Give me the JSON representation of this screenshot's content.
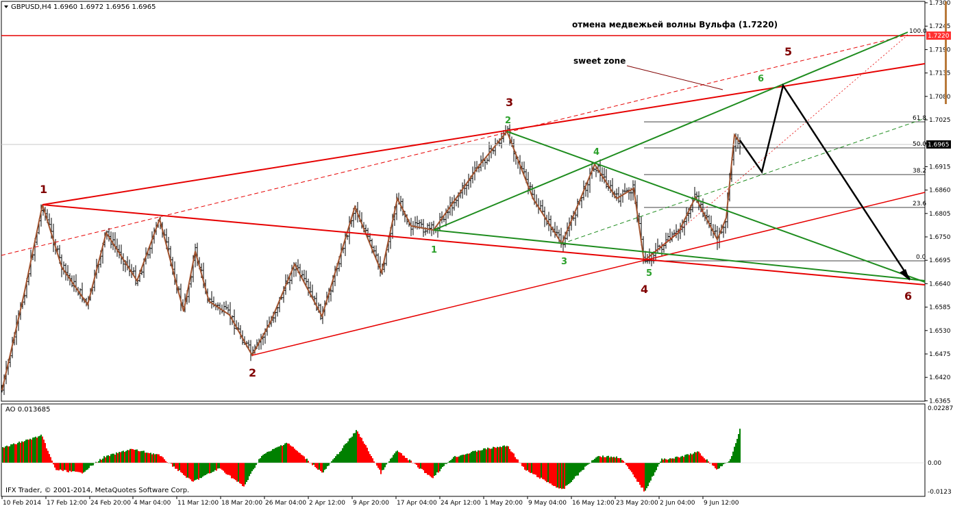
{
  "header": {
    "symbol": "GBPUSD,H4",
    "ohlc": "1.6960 1.6972 1.6956 1.6965"
  },
  "indicator": {
    "label": "AO 0.013685",
    "axis_top": "0.022877",
    "axis_zero": "0.00",
    "axis_bottom": "-0.0123"
  },
  "copyright": "IFX Trader, © 2001-2014, MetaQuotes Software Corp.",
  "annotations": {
    "cancel_text": "отмена медвежьей волны Вульфа (1.7220)",
    "sweet_zone": "sweet zone"
  },
  "price_tags": {
    "current": "1.6965",
    "cancel_level": "1.7220"
  },
  "colors": {
    "red_line": "#e60000",
    "green_line": "#1e8c1e",
    "zigzag": "#a0522d",
    "ao_up": "#008000",
    "ao_down": "#ff0000",
    "price_tag_bg": "#ff3030",
    "current_tag_bg": "#000000"
  },
  "chart_data": {
    "type": "candlestick",
    "symbol": "GBPUSD",
    "timeframe": "H4",
    "x_labels": [
      "10 Feb 2014",
      "17 Feb 12:00",
      "24 Feb 20:00",
      "4 Mar 04:00",
      "11 Mar 12:00",
      "18 Mar 20:00",
      "26 Mar 04:00",
      "2 Apr 12:00",
      "9 Apr 20:00",
      "17 Apr 04:00",
      "24 Apr 12:00",
      "1 May 20:00",
      "9 May 04:00",
      "16 May 12:00",
      "23 May 20:00",
      "2 Jun 04:00",
      "9 Jun 12:00"
    ],
    "y_ticks": [
      "1.7300",
      "1.7245",
      "1.7190",
      "1.7135",
      "1.7080",
      "1.7025",
      "1.6970",
      "1.6915",
      "1.6860",
      "1.6805",
      "1.6750",
      "1.6695",
      "1.6640",
      "1.6585",
      "1.6530",
      "1.6475",
      "1.6420",
      "1.6365"
    ],
    "ylim": [
      1.6345,
      1.731
    ],
    "current_price": 1.6965,
    "cancel_level": 1.722,
    "fib_levels": [
      {
        "label": "100.0",
        "price": 1.722
      },
      {
        "label": "61.8",
        "price": 1.7005
      },
      {
        "label": "50.0",
        "price": 1.6965
      },
      {
        "label": "38.2",
        "price": 1.6898
      },
      {
        "label": "23.6",
        "price": 1.6815
      },
      {
        "label": "0.0",
        "price": 1.67
      }
    ],
    "red_wave_points": [
      {
        "label": "1",
        "time": "17 Feb 04:00",
        "price": 1.682
      },
      {
        "label": "2",
        "time": "18 Mar 20:00",
        "price": 1.6462
      },
      {
        "label": "3",
        "time": "1 May 20:00",
        "price": 1.6995
      },
      {
        "label": "4",
        "time": "27 May 12:00",
        "price": 1.669
      },
      {
        "label": "5",
        "time": "projection",
        "price": 1.71
      },
      {
        "label": "6",
        "time": "projection",
        "price": 1.664
      }
    ],
    "green_wave_points": [
      {
        "label": "1",
        "price": 1.677
      },
      {
        "label": "2",
        "price": 1.6995
      },
      {
        "label": "3",
        "price": 1.6735
      },
      {
        "label": "4",
        "price": 1.692
      },
      {
        "label": "5",
        "price": 1.669
      },
      {
        "label": "6",
        "price": 1.71
      }
    ],
    "ao_ylim": [
      -0.0123,
      0.022877
    ]
  }
}
